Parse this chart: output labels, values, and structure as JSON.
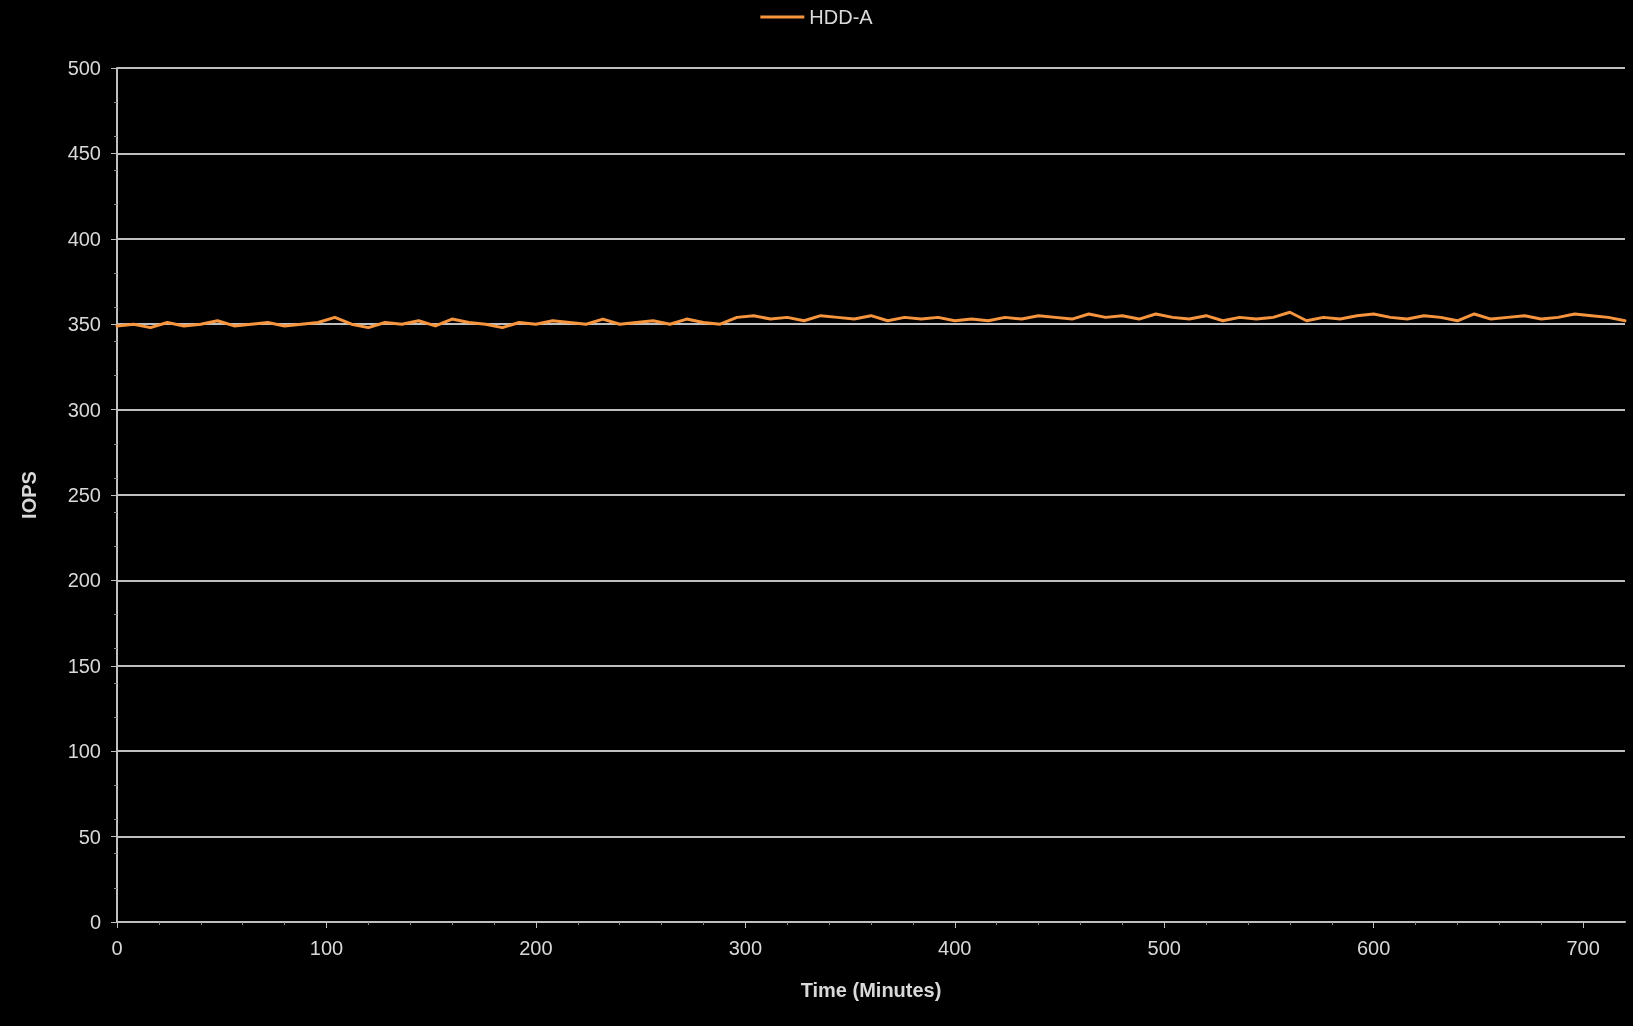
{
  "chart_data": {
    "type": "line",
    "xlabel": "Time (Minutes)",
    "ylabel": "IOPS",
    "xlim": [
      0,
      720
    ],
    "xticks": [
      0,
      100,
      200,
      300,
      400,
      500,
      600,
      700
    ],
    "ylim": [
      0,
      500
    ],
    "yticks": [
      0,
      50,
      100,
      150,
      200,
      250,
      300,
      350,
      400,
      450,
      500
    ],
    "grid": "y",
    "legend": "top",
    "marker": "none",
    "line_style": "solid",
    "x": [
      0,
      8,
      16,
      24,
      32,
      40,
      48,
      56,
      64,
      72,
      80,
      88,
      96,
      104,
      112,
      120,
      128,
      136,
      144,
      152,
      160,
      168,
      176,
      184,
      192,
      200,
      208,
      216,
      224,
      232,
      240,
      248,
      256,
      264,
      272,
      280,
      288,
      296,
      304,
      312,
      320,
      328,
      336,
      344,
      352,
      360,
      368,
      376,
      384,
      392,
      400,
      408,
      416,
      424,
      432,
      440,
      448,
      456,
      464,
      472,
      480,
      488,
      496,
      504,
      512,
      520,
      528,
      536,
      544,
      552,
      560,
      568,
      576,
      584,
      592,
      600,
      608,
      616,
      624,
      632,
      640,
      648,
      656,
      664,
      672,
      680,
      688,
      696,
      704,
      712,
      720
    ],
    "series": [
      {
        "name": "HDD-A",
        "color": "#f7953f",
        "values": [
          349,
          350,
          348,
          351,
          349,
          350,
          352,
          349,
          350,
          351,
          349,
          350,
          351,
          354,
          350,
          348,
          351,
          350,
          352,
          349,
          353,
          351,
          350,
          348,
          351,
          350,
          352,
          351,
          350,
          353,
          350,
          351,
          352,
          350,
          353,
          351,
          350,
          354,
          355,
          353,
          354,
          352,
          355,
          354,
          353,
          355,
          352,
          354,
          353,
          354,
          352,
          353,
          352,
          354,
          353,
          355,
          354,
          353,
          356,
          354,
          355,
          353,
          356,
          354,
          353,
          355,
          352,
          354,
          353,
          354,
          357,
          352,
          354,
          353,
          355,
          356,
          354,
          353,
          355,
          354,
          352,
          356,
          353,
          354,
          355,
          353,
          354,
          356,
          355,
          354,
          352
        ]
      }
    ]
  }
}
